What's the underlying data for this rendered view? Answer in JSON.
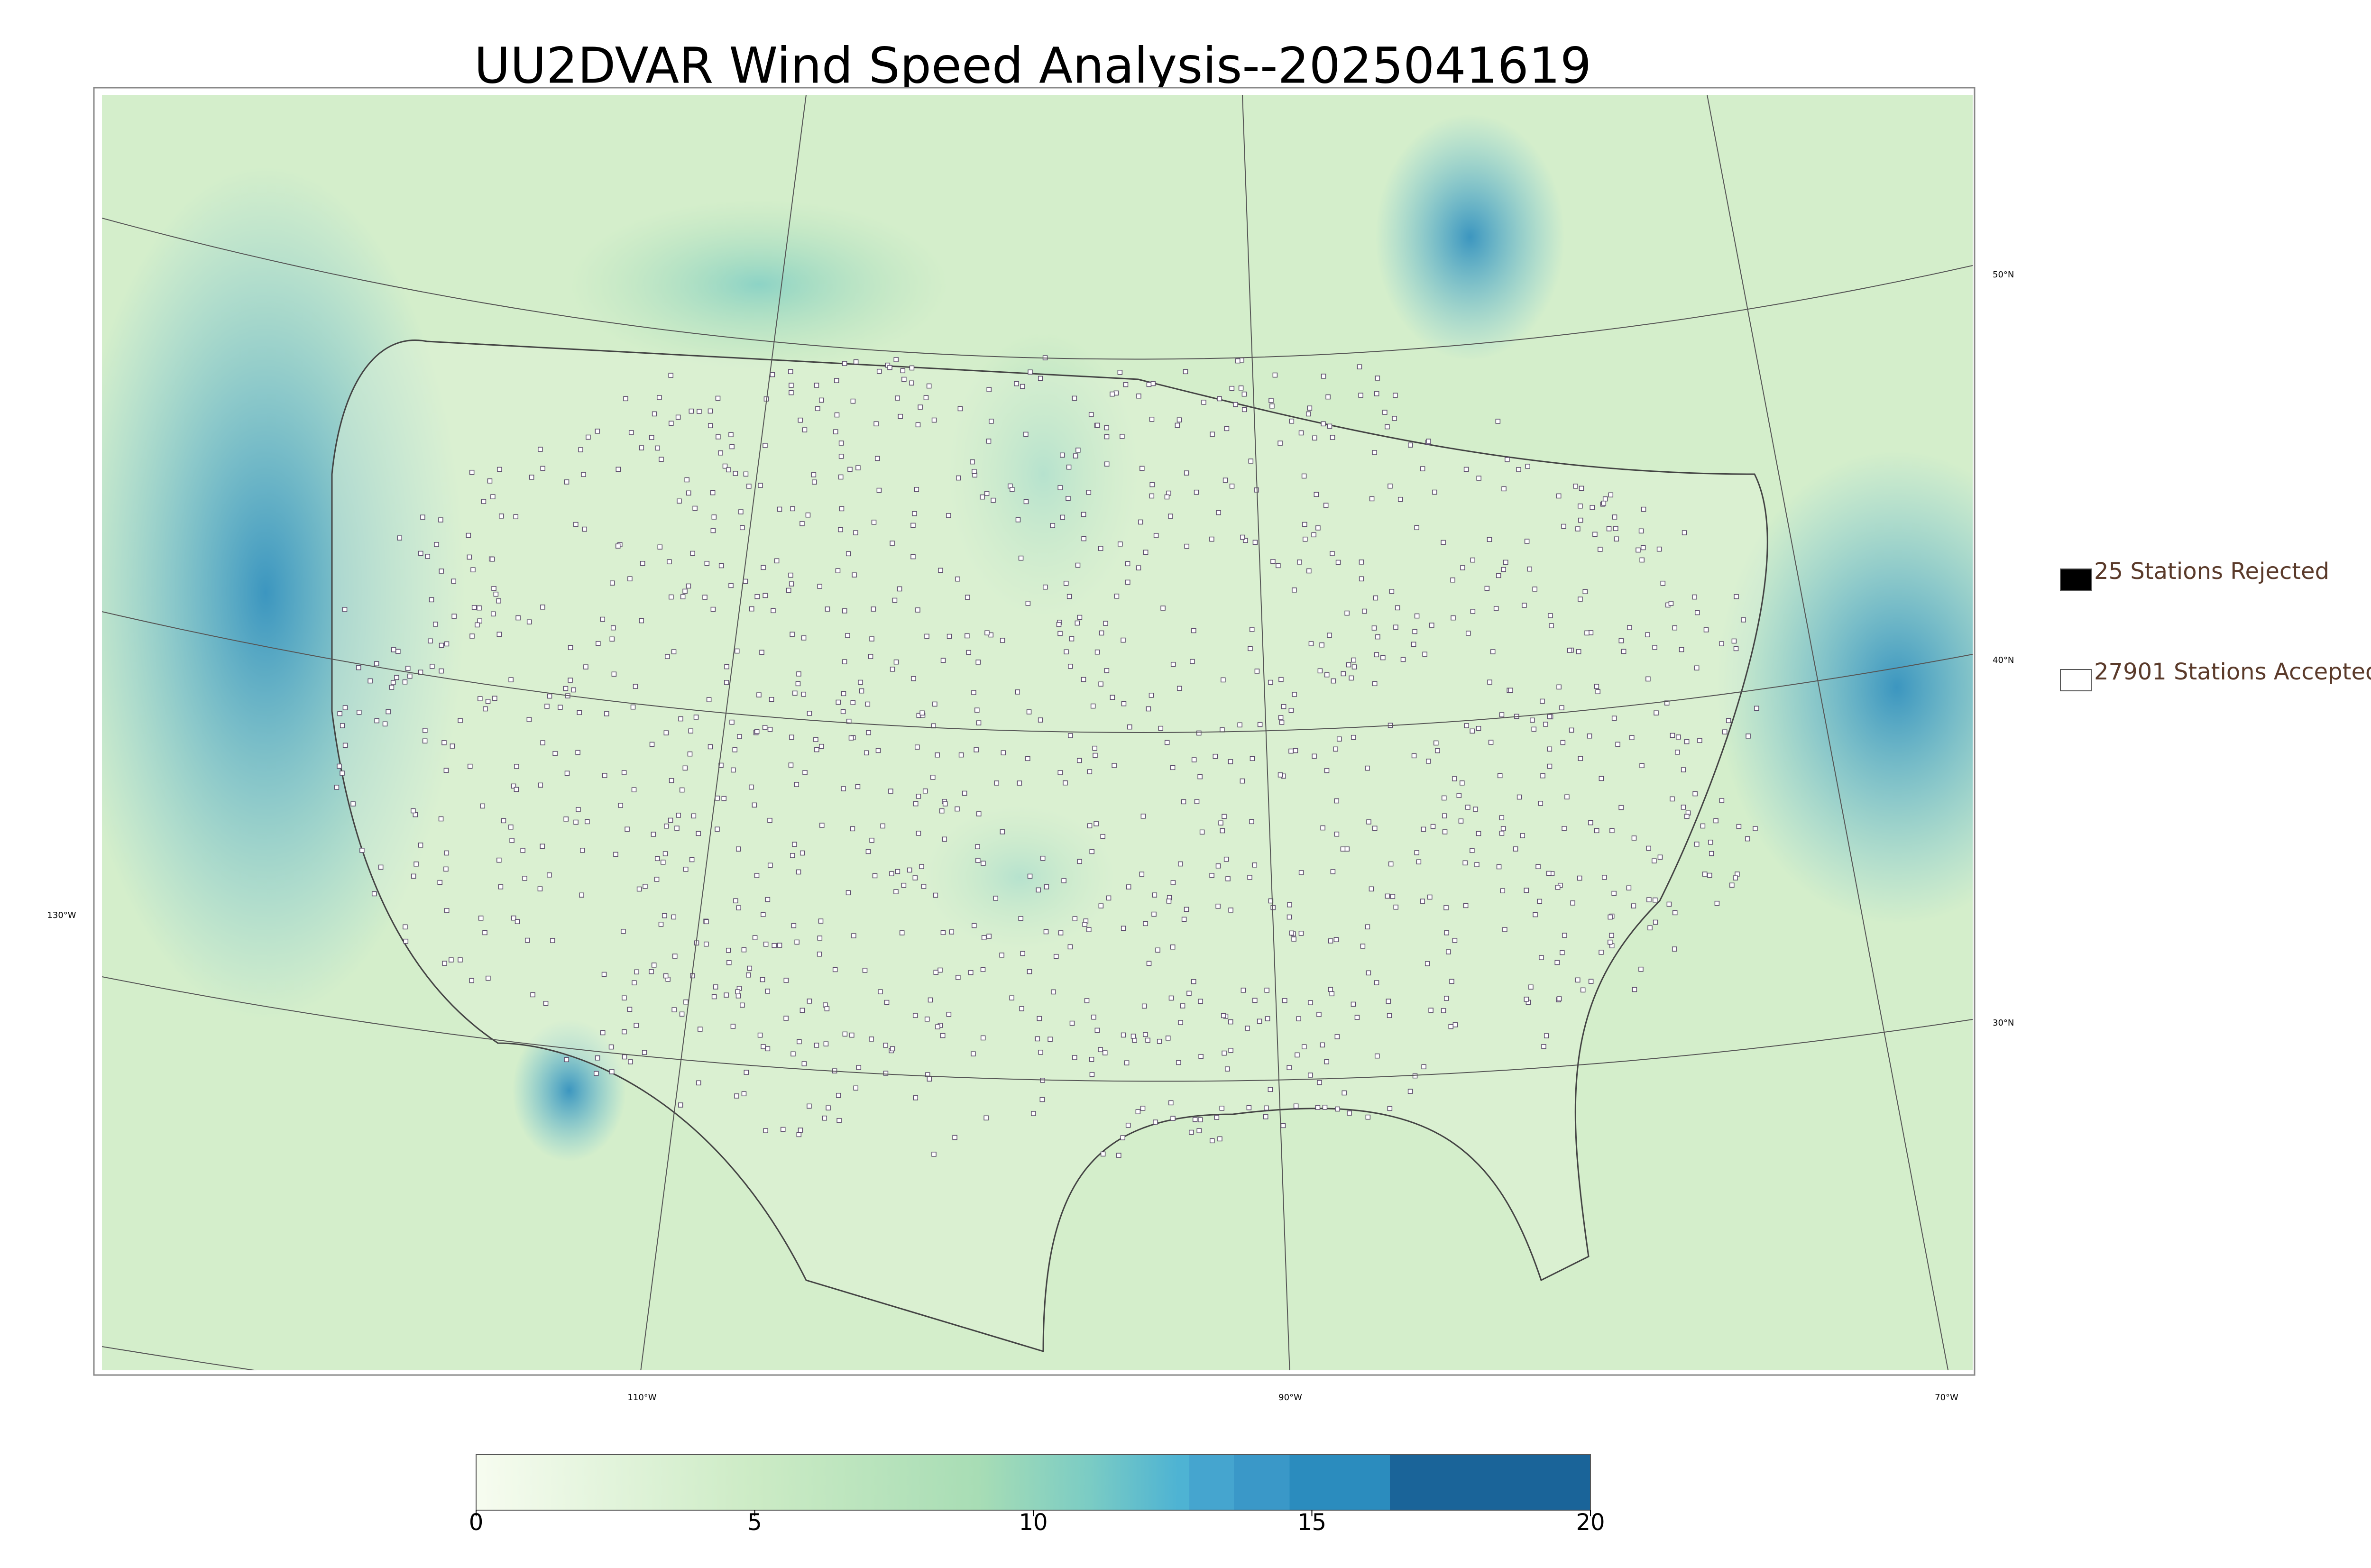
{
  "title": "UU2DVAR Wind Speed Analysis--2025041619",
  "legend": [
    {
      "label": "25 Stations Rejected",
      "color": "#000000"
    },
    {
      "label": "27901 Stations Accepted",
      "color": "#ffffff"
    }
  ],
  "colorbar": {
    "lim": [
      0,
      20
    ],
    "ticks": [
      0,
      5,
      10,
      15,
      20
    ]
  },
  "graticule": {
    "lat_labels": [
      "50°N",
      "40°N",
      "30°N"
    ],
    "lon_labels": [
      "130°W",
      "110°W",
      "90°W",
      "70°W"
    ]
  }
}
